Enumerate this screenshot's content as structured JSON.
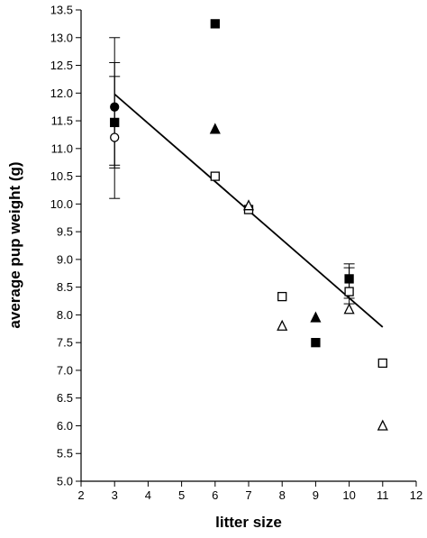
{
  "chart_data": {
    "type": "scatter",
    "xlabel": "litter size",
    "ylabel": "average pup weight (g)",
    "xlim": [
      2,
      12
    ],
    "ylim": [
      5.0,
      13.5
    ],
    "x_ticks": [
      "2",
      "3",
      "4",
      "5",
      "6",
      "7",
      "8",
      "9",
      "10",
      "11",
      "12"
    ],
    "y_ticks": [
      "5.0",
      "5.5",
      "6.0",
      "6.5",
      "7.0",
      "7.5",
      "8.0",
      "8.5",
      "9.0",
      "9.5",
      "10.0",
      "10.5",
      "11.0",
      "11.5",
      "12.0",
      "12.5",
      "13.0",
      "13.5"
    ],
    "grid": false,
    "series": [
      {
        "marker": "filled-square",
        "points": [
          [
            3,
            11.47
          ],
          [
            6,
            13.25
          ],
          [
            9,
            7.5
          ],
          [
            10,
            8.65
          ]
        ]
      },
      {
        "marker": "open-square",
        "points": [
          [
            6,
            10.5
          ],
          [
            7,
            9.9
          ],
          [
            8,
            8.33
          ],
          [
            10,
            8.42
          ],
          [
            11,
            7.13
          ]
        ]
      },
      {
        "marker": "filled-triangle",
        "points": [
          [
            6,
            11.35
          ],
          [
            9,
            7.95
          ]
        ]
      },
      {
        "marker": "open-triangle",
        "points": [
          [
            7,
            9.97
          ],
          [
            8,
            7.8
          ],
          [
            10,
            8.1
          ],
          [
            11,
            6.0
          ]
        ]
      },
      {
        "marker": "filled-circle",
        "points": [
          [
            3,
            11.75
          ]
        ]
      },
      {
        "marker": "open-circle",
        "points": [
          [
            3,
            11.2
          ]
        ]
      }
    ],
    "error_bars": [
      {
        "x": 3,
        "low": 10.1,
        "high": 13.0
      },
      {
        "x": 3,
        "low": 10.65,
        "high": 12.55
      },
      {
        "x": 3,
        "low": 10.7,
        "high": 12.3
      },
      {
        "x": 10,
        "low": 8.2,
        "high": 8.92
      },
      {
        "x": 10,
        "low": 8.3,
        "high": 8.85
      }
    ],
    "trendline": {
      "x": [
        3,
        11
      ],
      "y": [
        11.98,
        7.78
      ]
    }
  }
}
